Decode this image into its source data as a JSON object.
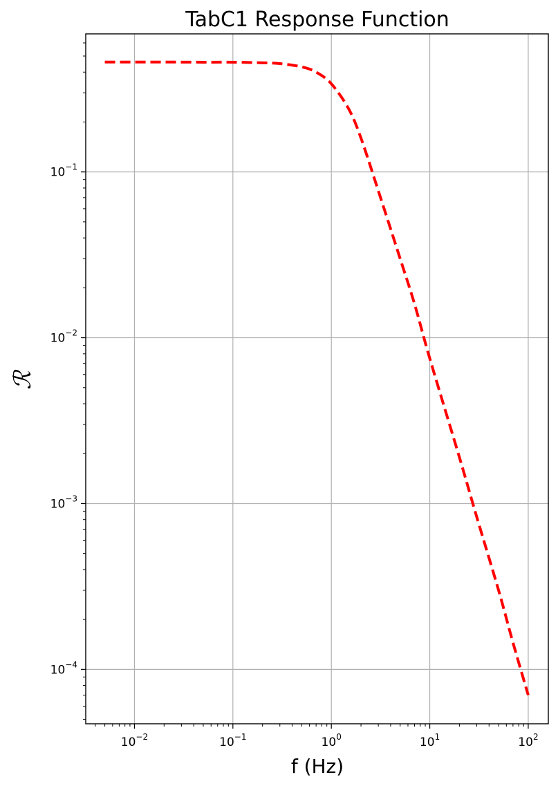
{
  "chart_data": {
    "type": "line",
    "title": "TabC1 Response Function",
    "xlabel": "f (Hz)",
    "ylabel": "ℛ",
    "x_scale": "log",
    "y_scale": "log",
    "xlim": [
      0.0032,
      160
    ],
    "ylim": [
      4.7e-05,
      0.68
    ],
    "grid": true,
    "x_ticks": [
      {
        "value": 0.01,
        "base": "10",
        "exp": "−2"
      },
      {
        "value": 0.1,
        "base": "10",
        "exp": "−1"
      },
      {
        "value": 1,
        "base": "10",
        "exp": "0"
      },
      {
        "value": 10,
        "base": "10",
        "exp": "1"
      },
      {
        "value": 100,
        "base": "10",
        "exp": "2"
      }
    ],
    "y_ticks": [
      {
        "value": 0.0001,
        "base": "10",
        "exp": "−4"
      },
      {
        "value": 0.001,
        "base": "10",
        "exp": "−3"
      },
      {
        "value": 0.01,
        "base": "10",
        "exp": "−2"
      },
      {
        "value": 0.1,
        "base": "10",
        "exp": "−1"
      }
    ],
    "series": [
      {
        "color": "#ff0000",
        "line_style": "dashed",
        "x": [
          0.005,
          0.01,
          0.02,
          0.05,
          0.1,
          0.2,
          0.3,
          0.5,
          0.7,
          1.0,
          1.5,
          2.0,
          3.0,
          5.0,
          7.0,
          10,
          20,
          30,
          50,
          70,
          100
        ],
        "y": [
          0.46,
          0.46,
          0.46,
          0.459,
          0.459,
          0.455,
          0.45,
          0.43,
          0.4,
          0.34,
          0.24,
          0.16,
          0.077,
          0.03,
          0.016,
          0.0075,
          0.0019,
          0.00083,
          0.0003,
          0.000145,
          7e-05
        ]
      }
    ]
  }
}
